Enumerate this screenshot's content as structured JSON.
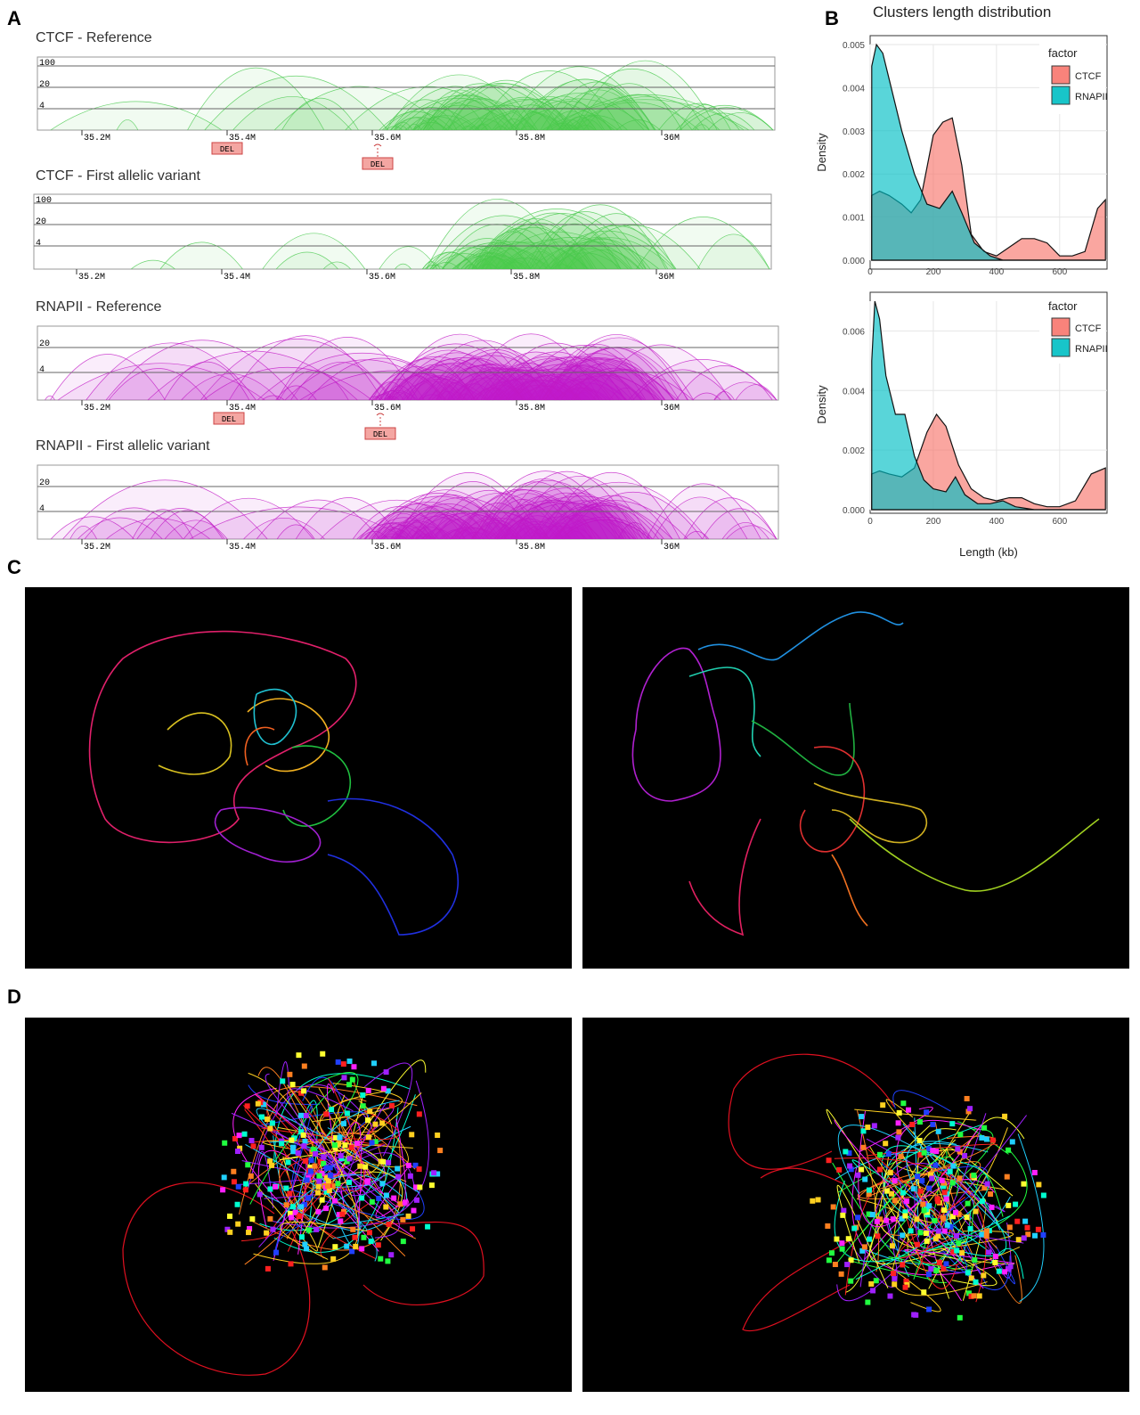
{
  "panels": {
    "a": "A",
    "b": "B",
    "c": "C",
    "d": "D"
  },
  "colors": {
    "ctcf_arc": "#49c94e",
    "rnapii_arc": "#c21bc6",
    "ctcf_density": "#f8766d",
    "rnapii_density": "#00bfc4",
    "del_fill": "#f4a6a2"
  },
  "arc_tracks": [
    {
      "title": "CTCF - Reference",
      "y_levels": [
        "100",
        "20",
        "4"
      ],
      "x_ticks": [
        "35.2M",
        "35.4M",
        "35.6M",
        "35.8M",
        "36M"
      ],
      "deletions": [
        "DEL",
        "DEL"
      ]
    },
    {
      "title": "CTCF - First allelic variant",
      "y_levels": [
        "100",
        "20",
        "4"
      ],
      "x_ticks": [
        "35.2M",
        "35.4M",
        "35.6M",
        "35.8M",
        "36M"
      ],
      "deletions": []
    },
    {
      "title": "RNAPII - Reference",
      "y_levels": [
        "20",
        "4"
      ],
      "x_ticks": [
        "35.2M",
        "35.4M",
        "35.6M",
        "35.8M",
        "36M"
      ],
      "deletions": [
        "DEL",
        "DEL"
      ]
    },
    {
      "title": "RNAPII - First allelic variant",
      "y_levels": [
        "20",
        "4"
      ],
      "x_ticks": [
        "35.2M",
        "35.4M",
        "35.6M",
        "35.8M",
        "36M"
      ],
      "deletions": []
    }
  ],
  "chart_data": [
    {
      "type": "area",
      "title": "Clusters length distribution",
      "xlabel": "",
      "ylabel": "Density",
      "xlim": [
        0,
        750
      ],
      "ylim": [
        0,
        0.005
      ],
      "x_ticks": [
        "0",
        "200",
        "400",
        "600"
      ],
      "y_ticks": [
        "0.000",
        "0.001",
        "0.002",
        "0.003",
        "0.004",
        "0.005"
      ],
      "grid": true,
      "legend": {
        "title": "factor",
        "position": "top-right",
        "entries": [
          "CTCF",
          "RNAPII"
        ]
      },
      "series": [
        {
          "name": "CTCF",
          "x": [
            5,
            30,
            60,
            100,
            130,
            160,
            200,
            230,
            260,
            290,
            320,
            360,
            400,
            440,
            480,
            520,
            560,
            600,
            640,
            680,
            720,
            745
          ],
          "y": [
            0.0015,
            0.0016,
            0.0015,
            0.0013,
            0.0011,
            0.0014,
            0.0029,
            0.0032,
            0.0033,
            0.0022,
            0.0006,
            0.0002,
            0.0001,
            0.0003,
            0.0005,
            0.0005,
            0.0004,
            0.0001,
            0.0001,
            0.0002,
            0.0012,
            0.0014
          ]
        },
        {
          "name": "RNAPII",
          "x": [
            5,
            20,
            40,
            60,
            100,
            140,
            180,
            220,
            260,
            290,
            330,
            380,
            420,
            460,
            500,
            560,
            600,
            650,
            700,
            745
          ],
          "y": [
            0.0045,
            0.005,
            0.0048,
            0.0042,
            0.003,
            0.002,
            0.0013,
            0.0012,
            0.0016,
            0.0011,
            0.0004,
            0.0001,
            0.0,
            0.0,
            0.0,
            0.0,
            0.0,
            0.0,
            0.0,
            0.0
          ]
        }
      ]
    },
    {
      "type": "area",
      "title": "",
      "xlabel": "Length (kb)",
      "ylabel": "Density",
      "xlim": [
        0,
        750
      ],
      "ylim": [
        0,
        0.007
      ],
      "x_ticks": [
        "0",
        "200",
        "400",
        "600"
      ],
      "y_ticks": [
        "0.000",
        "0.002",
        "0.004",
        "0.006"
      ],
      "grid": true,
      "legend": {
        "title": "factor",
        "position": "top-right",
        "entries": [
          "CTCF",
          "RNAPII"
        ]
      },
      "series": [
        {
          "name": "CTCF",
          "x": [
            5,
            30,
            60,
            100,
            140,
            180,
            210,
            240,
            280,
            320,
            360,
            400,
            440,
            480,
            520,
            560,
            600,
            650,
            700,
            745
          ],
          "y": [
            0.0012,
            0.0013,
            0.0012,
            0.0011,
            0.0014,
            0.0026,
            0.0032,
            0.0028,
            0.0015,
            0.0007,
            0.0004,
            0.0003,
            0.0004,
            0.0004,
            0.0002,
            0.0001,
            0.0001,
            0.0003,
            0.0012,
            0.0014
          ]
        },
        {
          "name": "RNAPII",
          "x": [
            5,
            15,
            30,
            50,
            80,
            110,
            140,
            170,
            200,
            240,
            270,
            300,
            340,
            380,
            420,
            460,
            520,
            580,
            650,
            745
          ],
          "y": [
            0.005,
            0.007,
            0.0064,
            0.0045,
            0.0032,
            0.0032,
            0.0018,
            0.001,
            0.0007,
            0.0006,
            0.0011,
            0.0005,
            0.0002,
            0.0002,
            0.0003,
            0.0001,
            0.0,
            0.0,
            0.0,
            0.0
          ]
        }
      ]
    }
  ]
}
